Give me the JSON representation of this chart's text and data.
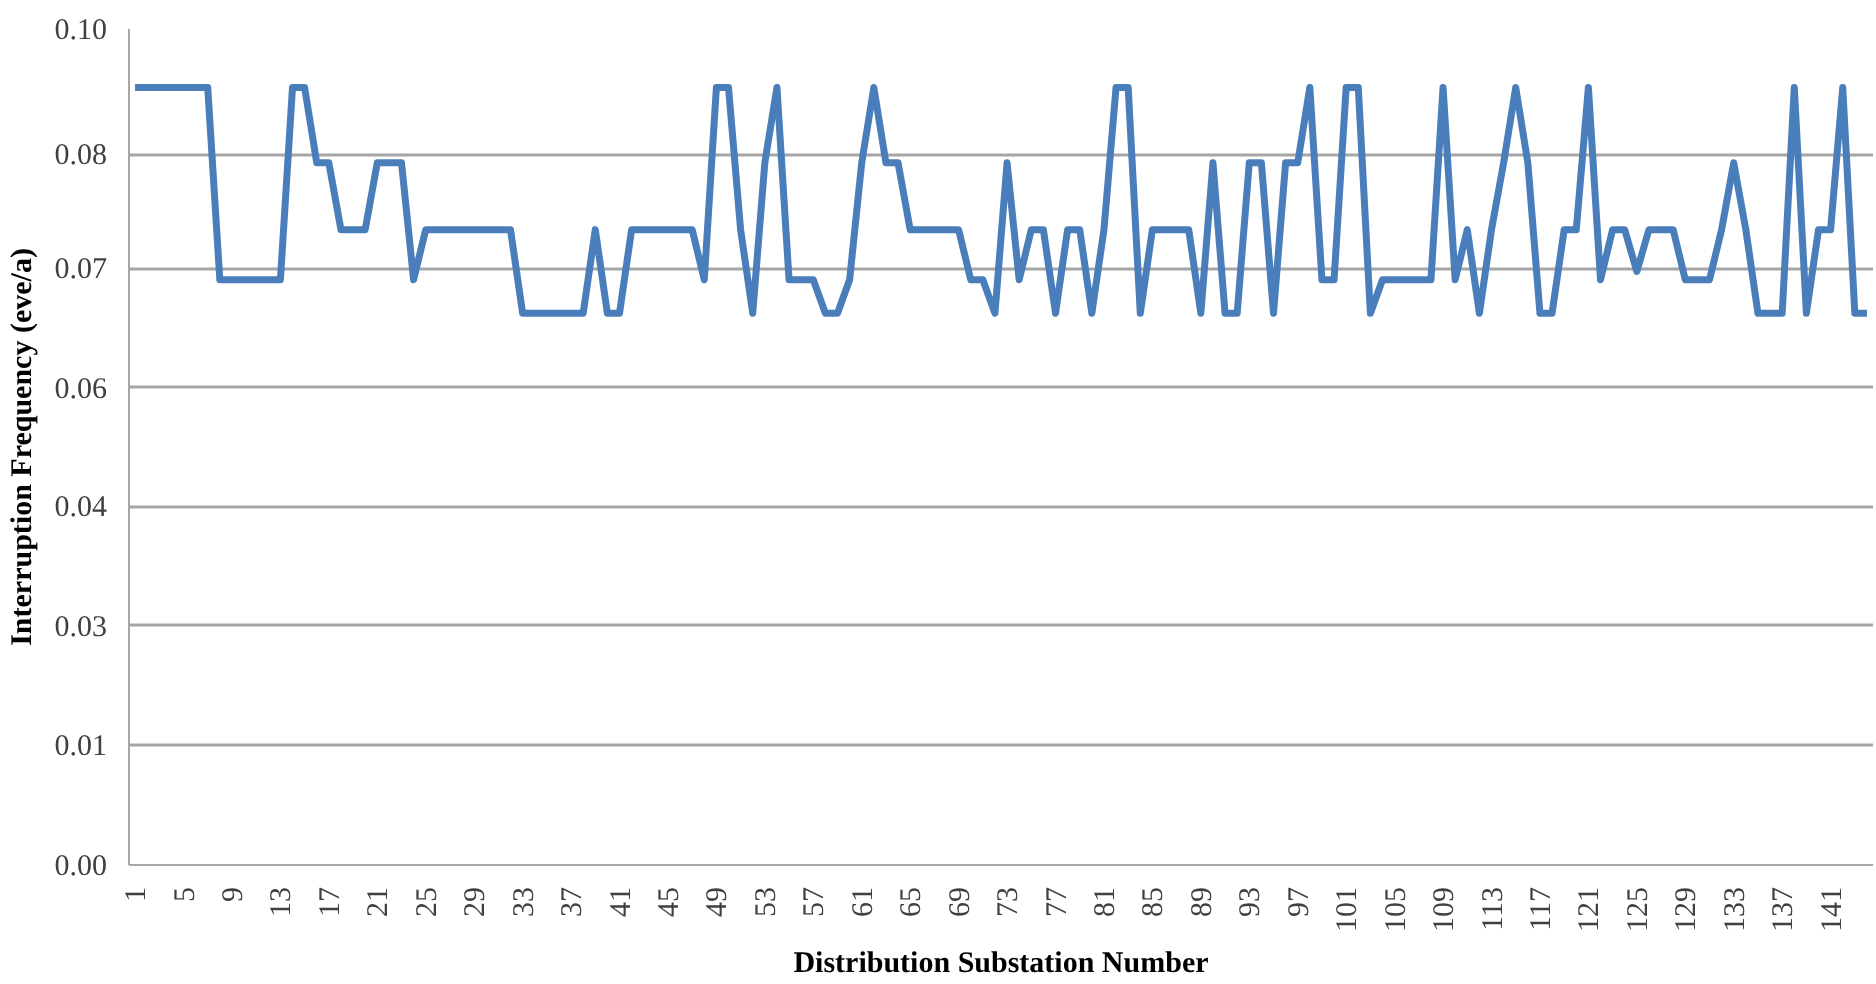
{
  "chart_data": {
    "type": "line",
    "xlabel": "Distribution Substation Number",
    "ylabel": "Interruption Frequency (eve/a)",
    "categories": [
      "1",
      null,
      null,
      null,
      "5",
      null,
      null,
      null,
      "9",
      null,
      null,
      null,
      "13",
      null,
      null,
      null,
      "17",
      null,
      null,
      null,
      "21",
      null,
      null,
      null,
      "25",
      null,
      null,
      null,
      "29",
      null,
      null,
      null,
      "33",
      null,
      null,
      null,
      "37",
      null,
      null,
      null,
      "41",
      null,
      null,
      null,
      "45",
      null,
      null,
      null,
      "49",
      null,
      null,
      null,
      "53",
      null,
      null,
      null,
      "57",
      null,
      null,
      null,
      "61",
      null,
      null,
      null,
      "65",
      null,
      null,
      null,
      "69",
      null,
      null,
      null,
      "73",
      null,
      null,
      null,
      "77",
      null,
      null,
      null,
      "81",
      null,
      null,
      null,
      "85",
      null,
      null,
      null,
      "89",
      null,
      null,
      null,
      "93",
      null,
      null,
      null,
      "97",
      null,
      null,
      null,
      "101",
      null,
      null,
      null,
      "105",
      null,
      null,
      null,
      "109",
      null,
      null,
      null,
      "113",
      null,
      null,
      null,
      "117",
      null,
      null,
      null,
      "121",
      null,
      null,
      null,
      "125",
      null,
      null,
      null,
      "129",
      null,
      null,
      null,
      "133",
      null,
      null,
      null,
      "137",
      null,
      null,
      null,
      "141",
      null,
      null,
      null
    ],
    "series": [
      {
        "color": "#4a7ebb",
        "values": [
          0.093,
          0.093,
          0.093,
          0.093,
          0.093,
          0.093,
          0.093,
          0.07,
          0.07,
          0.07,
          0.07,
          0.07,
          0.07,
          0.093,
          0.093,
          0.084,
          0.084,
          0.076,
          0.076,
          0.076,
          0.084,
          0.084,
          0.084,
          0.07,
          0.076,
          0.076,
          0.076,
          0.076,
          0.076,
          0.076,
          0.076,
          0.076,
          0.066,
          0.066,
          0.066,
          0.066,
          0.066,
          0.066,
          0.076,
          0.066,
          0.066,
          0.076,
          0.076,
          0.076,
          0.076,
          0.076,
          0.076,
          0.07,
          0.093,
          0.093,
          0.076,
          0.066,
          0.084,
          0.093,
          0.07,
          0.07,
          0.07,
          0.066,
          0.066,
          0.07,
          0.084,
          0.093,
          0.084,
          0.084,
          0.076,
          0.076,
          0.076,
          0.076,
          0.076,
          0.07,
          0.07,
          0.066,
          0.084,
          0.07,
          0.076,
          0.076,
          0.066,
          0.076,
          0.076,
          0.066,
          0.076,
          0.093,
          0.093,
          0.066,
          0.076,
          0.076,
          0.076,
          0.076,
          0.066,
          0.084,
          0.066,
          0.066,
          0.084,
          0.084,
          0.066,
          0.084,
          0.084,
          0.093,
          0.07,
          0.07,
          0.093,
          0.093,
          0.066,
          0.07,
          0.07,
          0.07,
          0.07,
          0.07,
          0.093,
          0.07,
          0.076,
          0.066,
          0.076,
          0.084,
          0.093,
          0.084,
          0.066,
          0.066,
          0.076,
          0.076,
          0.093,
          0.07,
          0.076,
          0.076,
          0.071,
          0.076,
          0.076,
          0.076,
          0.07,
          0.07,
          0.07,
          0.076,
          0.084,
          0.076,
          0.066,
          0.066,
          0.066,
          0.093,
          0.066,
          0.076,
          0.076,
          0.093,
          0.066,
          0.066
        ]
      }
    ],
    "ylim": [
      0,
      0.1
    ],
    "yticks": [
      {
        "value": 0,
        "label": "0.00"
      },
      {
        "value": 0.0143,
        "label": "0.01"
      },
      {
        "value": 0.0286,
        "label": "0.03"
      },
      {
        "value": 0.0429,
        "label": "0.04"
      },
      {
        "value": 0.0571,
        "label": "0.06"
      },
      {
        "value": 0.0714,
        "label": "0.07"
      },
      {
        "value": 0.085,
        "label": "0.08"
      },
      {
        "value": 0.1,
        "label": "0.10"
      }
    ],
    "grid": "y",
    "marker": "none",
    "line_style": "solid"
  }
}
